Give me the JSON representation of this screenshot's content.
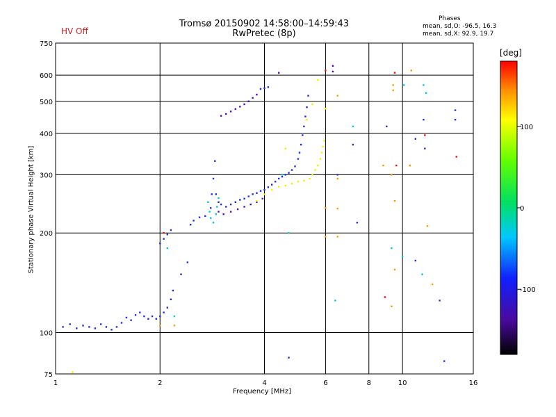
{
  "header": {
    "title_line1": "Tromsø 20150902 14:58:00–14:59:43",
    "title_line2": "RwPretec (8p)",
    "hv_status": "HV Off",
    "phase_title": "Phases",
    "phase_o": "mean, sd,O: -96.5, 16.3",
    "phase_x": "mean, sd,X:  92.9, 19.7"
  },
  "colors": {
    "hv_status": "#cc2222"
  },
  "chart_data": {
    "type": "scatter",
    "xlabel": "Frequency [MHz]",
    "ylabel": "Stationary phase Virtual Height [km]",
    "x_scale": "log",
    "y_scale": "log",
    "xlim": [
      1,
      16
    ],
    "ylim": [
      75,
      750
    ],
    "x_ticks": [
      1,
      2,
      4,
      6,
      8,
      10,
      16
    ],
    "y_ticks": [
      75,
      100,
      200,
      300,
      400,
      500,
      600,
      750
    ],
    "grid": true,
    "colorbar": {
      "label": "[deg]",
      "ticks": [
        100,
        0,
        -100
      ],
      "range": [
        -180,
        180
      ]
    },
    "series": [
      {
        "phase": -100,
        "color": "#1f2fe0",
        "points": [
          [
            1.05,
            104
          ],
          [
            1.1,
            106
          ],
          [
            1.15,
            103
          ],
          [
            1.2,
            105
          ],
          [
            1.25,
            104
          ],
          [
            1.3,
            103
          ],
          [
            1.35,
            106
          ],
          [
            1.4,
            104
          ],
          [
            1.45,
            102
          ],
          [
            1.5,
            104
          ],
          [
            1.55,
            107
          ],
          [
            1.6,
            111
          ],
          [
            1.65,
            109
          ],
          [
            1.7,
            113
          ],
          [
            1.75,
            115
          ],
          [
            1.8,
            112
          ],
          [
            1.85,
            110
          ],
          [
            1.9,
            112
          ],
          [
            1.95,
            110
          ],
          [
            2.0,
            112
          ],
          [
            2.05,
            115
          ],
          [
            2.1,
            119
          ],
          [
            2.15,
            126
          ],
          [
            2.18,
            134
          ],
          [
            2.0,
            186
          ],
          [
            2.05,
            192
          ],
          [
            2.1,
            198
          ],
          [
            2.15,
            204
          ],
          [
            2.3,
            150
          ],
          [
            2.4,
            163
          ],
          [
            2.45,
            212
          ],
          [
            2.5,
            218
          ],
          [
            2.6,
            223
          ],
          [
            2.7,
            225
          ],
          [
            2.8,
            238
          ],
          [
            2.82,
            262
          ],
          [
            2.85,
            292
          ],
          [
            2.88,
            330
          ],
          [
            2.9,
            262
          ],
          [
            2.95,
            248
          ],
          [
            3.0,
            244
          ],
          [
            3.1,
            240
          ],
          [
            3.2,
            244
          ],
          [
            3.3,
            248
          ],
          [
            3.4,
            252
          ],
          [
            3.5,
            254
          ],
          [
            3.6,
            258
          ],
          [
            3.7,
            262
          ],
          [
            3.8,
            264
          ],
          [
            3.9,
            268
          ],
          [
            4.0,
            270
          ],
          [
            4.1,
            275
          ],
          [
            4.2,
            280
          ],
          [
            4.3,
            286
          ],
          [
            4.4,
            292
          ],
          [
            4.5,
            296
          ],
          [
            4.6,
            300
          ],
          [
            4.7,
            304
          ],
          [
            4.8,
            310
          ],
          [
            4.9,
            318
          ],
          [
            5.0,
            335
          ],
          [
            5.05,
            350
          ],
          [
            5.1,
            370
          ],
          [
            5.15,
            395
          ],
          [
            5.2,
            420
          ],
          [
            5.25,
            450
          ],
          [
            5.3,
            480
          ],
          [
            5.35,
            520
          ],
          [
            3.9,
            545
          ],
          [
            4.0,
            548
          ],
          [
            4.1,
            552
          ],
          [
            6.5,
            300
          ],
          [
            7.2,
            370
          ],
          [
            7.4,
            215
          ],
          [
            9.0,
            420
          ],
          [
            11.5,
            440
          ],
          [
            12.8,
            125
          ],
          [
            14.2,
            470
          ],
          [
            14.2,
            440
          ],
          [
            11.6,
            360
          ],
          [
            13.2,
            82
          ],
          [
            4.7,
            84
          ],
          [
            10.9,
            165
          ],
          [
            10.9,
            385
          ]
        ]
      },
      {
        "phase": -130,
        "color": "#5010c0",
        "points": [
          [
            3.0,
            452
          ],
          [
            3.1,
            458
          ],
          [
            3.2,
            466
          ],
          [
            3.3,
            474
          ],
          [
            3.4,
            482
          ],
          [
            3.5,
            490
          ],
          [
            3.6,
            500
          ],
          [
            3.7,
            512
          ],
          [
            3.8,
            524
          ],
          [
            2.95,
            232
          ],
          [
            3.05,
            228
          ],
          [
            3.2,
            232
          ],
          [
            3.35,
            236
          ],
          [
            3.5,
            240
          ],
          [
            3.65,
            244
          ],
          [
            3.8,
            248
          ],
          [
            3.95,
            254
          ],
          [
            4.4,
            610
          ],
          [
            6.3,
            640
          ],
          [
            6.3,
            615
          ]
        ]
      },
      {
        "phase": -20,
        "color": "#00c8e0",
        "points": [
          [
            2.75,
            248
          ],
          [
            2.78,
            232
          ],
          [
            2.8,
            222
          ],
          [
            2.85,
            215
          ],
          [
            2.9,
            228
          ],
          [
            2.92,
            240
          ],
          [
            2.95,
            255
          ],
          [
            4.5,
            300
          ],
          [
            4.7,
            200
          ],
          [
            6.4,
            125
          ],
          [
            7.2,
            420
          ],
          [
            9.3,
            180
          ],
          [
            10.0,
            170
          ],
          [
            10.1,
            560
          ],
          [
            11.4,
            150
          ],
          [
            11.5,
            560
          ],
          [
            11.7,
            530
          ],
          [
            2.1,
            180
          ],
          [
            2.2,
            112
          ]
        ]
      },
      {
        "phase": 110,
        "color": "#f0f000",
        "points": [
          [
            3.8,
            250
          ],
          [
            4.0,
            262
          ],
          [
            4.2,
            270
          ],
          [
            4.4,
            276
          ],
          [
            4.6,
            278
          ],
          [
            4.8,
            282
          ],
          [
            5.0,
            286
          ],
          [
            5.2,
            288
          ],
          [
            5.4,
            292
          ],
          [
            5.5,
            300
          ],
          [
            5.6,
            310
          ],
          [
            5.7,
            320
          ],
          [
            5.8,
            335
          ],
          [
            5.85,
            350
          ],
          [
            5.9,
            365
          ],
          [
            5.95,
            380
          ],
          [
            5.3,
            440
          ],
          [
            5.5,
            490
          ],
          [
            6.0,
            475
          ],
          [
            1.12,
            76
          ],
          [
            5.7,
            580
          ],
          [
            4.6,
            360
          ]
        ]
      },
      {
        "phase": 140,
        "color": "#ff9a00",
        "points": [
          [
            6.5,
            520
          ],
          [
            6.5,
            292
          ],
          [
            6.5,
            237
          ],
          [
            6.5,
            195
          ],
          [
            6.0,
            238
          ],
          [
            6.0,
            195
          ],
          [
            8.8,
            320
          ],
          [
            9.4,
            560
          ],
          [
            9.4,
            540
          ],
          [
            9.5,
            250
          ],
          [
            9.5,
            155
          ],
          [
            9.3,
            120
          ],
          [
            10.6,
            620
          ],
          [
            12.2,
            140
          ],
          [
            11.8,
            210
          ],
          [
            10.5,
            320
          ],
          [
            2.2,
            105
          ],
          [
            2.0,
            105
          ],
          [
            9.3,
            300
          ],
          [
            10.5,
            320
          ]
        ]
      },
      {
        "phase": 170,
        "color": "#f01010",
        "points": [
          [
            2.05,
            200
          ],
          [
            9.5,
            610
          ],
          [
            9.6,
            320
          ],
          [
            11.6,
            395
          ],
          [
            14.3,
            340
          ],
          [
            6.0,
            620
          ],
          [
            8.9,
            128
          ]
        ]
      }
    ]
  }
}
